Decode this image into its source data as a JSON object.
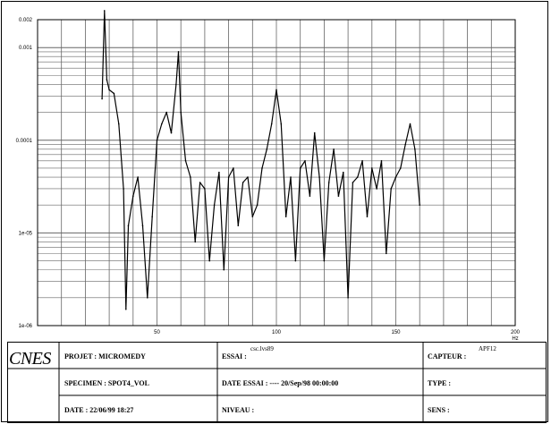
{
  "chart_data": {
    "type": "line",
    "scale": "log-y",
    "x_tick_labels": [
      "50",
      "100",
      "150",
      "200"
    ],
    "x_unit": "Hz",
    "x_range": [
      0,
      200
    ],
    "y_tick_labels": [
      "0.002",
      "0.001",
      "0.0001",
      "1e-05",
      "1e-06"
    ],
    "y_range": [
      1e-06,
      0.002
    ],
    "grid": true,
    "legend": "none",
    "series": [
      {
        "x": [
          27,
          28,
          29,
          30,
          32,
          34,
          36,
          37,
          38,
          40,
          42,
          44,
          46,
          48,
          50,
          52,
          54,
          56,
          58,
          59,
          60,
          62,
          64,
          66,
          68,
          70,
          72,
          74,
          76,
          78,
          80,
          82,
          84,
          86,
          88,
          90,
          92,
          94,
          96,
          98,
          100,
          102,
          104,
          106,
          108,
          110,
          112,
          114,
          116,
          118,
          120,
          122,
          124,
          126,
          128,
          130,
          132,
          134,
          136,
          138,
          140,
          142,
          144,
          146,
          148,
          150,
          152,
          154,
          156,
          158,
          160
        ],
        "y": [
          0.00028,
          0.0025,
          0.00045,
          0.00035,
          0.00032,
          0.00015,
          3e-05,
          1.5e-06,
          1.2e-05,
          2.5e-05,
          4e-05,
          1.2e-05,
          2e-06,
          1.5e-05,
          0.0001,
          0.00015,
          0.0002,
          0.00012,
          0.0004,
          0.0009,
          0.0002,
          6e-05,
          4e-05,
          8e-06,
          3.5e-05,
          3e-05,
          5e-06,
          2e-05,
          4.5e-05,
          4e-06,
          4e-05,
          5e-05,
          1.2e-05,
          3.5e-05,
          4e-05,
          1.5e-05,
          2e-05,
          5e-05,
          8e-05,
          0.00015,
          0.00035,
          0.00015,
          1.5e-05,
          4e-05,
          5e-06,
          5e-05,
          6e-05,
          2.5e-05,
          0.00012,
          4e-05,
          5e-06,
          3.5e-05,
          8e-05,
          2.5e-05,
          4.5e-05,
          2e-06,
          3.5e-05,
          4e-05,
          6e-05,
          1.5e-05,
          5e-05,
          3e-05,
          6e-05,
          6e-06,
          3e-05,
          4e-05,
          5e-05,
          9e-05,
          0.00015,
          8e-05,
          2e-05
        ]
      }
    ]
  },
  "cartouche": {
    "logo": "CNES",
    "projet": "PROJET : MICROMEDY",
    "specimen": "SPECIMEN : SPOT4_VOL",
    "date": "DATE : 22/06/99 18:27",
    "essai": "ESSAI :",
    "essai_value": "csc.lvs89",
    "date_essai": "DATE ESSAI : ---- 20/Sep/98 00:00:00",
    "niveau": "NIVEAU :",
    "capteur": "CAPTEUR :",
    "capteur_value": "APF12",
    "type": "TYPE :",
    "sens": "SENS :"
  },
  "colors": {
    "ink": "#000000",
    "grid": "#666666",
    "background": "#ffffff"
  }
}
